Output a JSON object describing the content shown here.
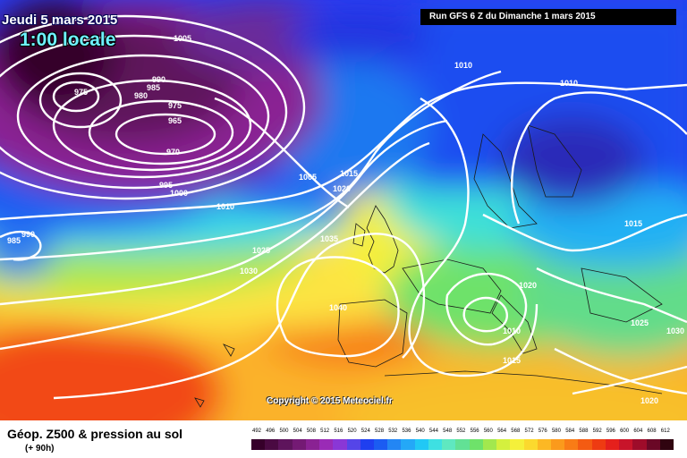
{
  "header": {
    "date": "Jeudi 5 mars 2015",
    "hour": "1:00 locale",
    "run": "Run GFS 6 Z du Dimanche 1 mars 2015"
  },
  "copyright": "Copyright © 2015 Meteociel.fr",
  "footer": {
    "title": "Géop. Z500 & pression au sol",
    "subtitle": "(+ 90h)"
  },
  "legend": {
    "values": [
      "492",
      "496",
      "500",
      "504",
      "508",
      "512",
      "516",
      "520",
      "524",
      "528",
      "532",
      "536",
      "540",
      "544",
      "548",
      "552",
      "556",
      "560",
      "564",
      "568",
      "572",
      "576",
      "580",
      "584",
      "588",
      "592",
      "596",
      "600",
      "604",
      "608",
      "612"
    ],
    "colors": [
      "#36002a",
      "#4a0a42",
      "#5e145c",
      "#741a74",
      "#8a2293",
      "#9a2bb6",
      "#8a37d6",
      "#5545e8",
      "#1f3ff0",
      "#1b5cf2",
      "#2386f4",
      "#24a8f7",
      "#21c8f5",
      "#3ee0e2",
      "#5fe8c0",
      "#62e195",
      "#6ee26a",
      "#a2e84e",
      "#d4f03e",
      "#f5f03a",
      "#fbd92e",
      "#fcb824",
      "#fb9a1c",
      "#f97c16",
      "#f45b12",
      "#ee3b12",
      "#e5201c",
      "#c8142a",
      "#9e0c2a",
      "#6a0826",
      "#300410"
    ]
  },
  "isobars": [
    {
      "value": "1005",
      "pos": "nw-top"
    },
    {
      "value": "990",
      "pos": "low-n1"
    },
    {
      "value": "985",
      "pos": "low-n2"
    },
    {
      "value": "980",
      "pos": "low-n3"
    },
    {
      "value": "975",
      "pos": "low-w"
    },
    {
      "value": "975",
      "pos": "low-c"
    },
    {
      "value": "965",
      "pos": "low-core"
    },
    {
      "value": "970",
      "pos": "low-s"
    },
    {
      "value": "995",
      "pos": "low-s2"
    },
    {
      "value": "1000",
      "pos": "low-s3"
    },
    {
      "value": "1010",
      "pos": "atl"
    },
    {
      "value": "1005",
      "pos": "mid"
    },
    {
      "value": "1015",
      "pos": "mid2"
    },
    {
      "value": "1020",
      "pos": "mid3"
    },
    {
      "value": "1025",
      "pos": "atl2"
    },
    {
      "value": "1030",
      "pos": "atl3"
    },
    {
      "value": "1035",
      "pos": "uk"
    },
    {
      "value": "1040",
      "pos": "iberia"
    },
    {
      "value": "985",
      "pos": "sw1"
    },
    {
      "value": "990",
      "pos": "sw2"
    },
    {
      "value": "1010",
      "pos": "scan1"
    },
    {
      "value": "1010",
      "pos": "scan2"
    },
    {
      "value": "1015",
      "pos": "east"
    },
    {
      "value": "1020",
      "pos": "alps"
    },
    {
      "value": "1010",
      "pos": "italy"
    },
    {
      "value": "1015",
      "pos": "italy2"
    },
    {
      "value": "1025",
      "pos": "balkan"
    },
    {
      "value": "1030",
      "pos": "east2"
    },
    {
      "value": "1020",
      "pos": "greece"
    }
  ]
}
